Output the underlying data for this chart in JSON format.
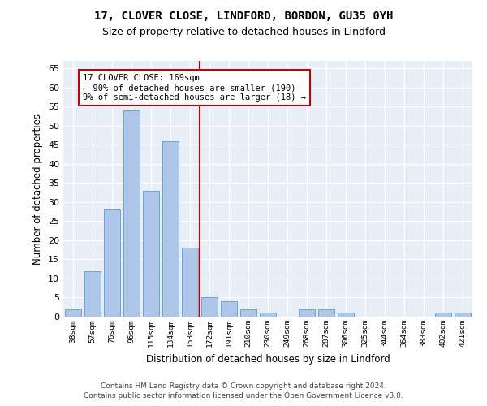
{
  "title": "17, CLOVER CLOSE, LINDFORD, BORDON, GU35 0YH",
  "subtitle": "Size of property relative to detached houses in Lindford",
  "xlabel": "Distribution of detached houses by size in Lindford",
  "ylabel": "Number of detached properties",
  "categories": [
    "38sqm",
    "57sqm",
    "76sqm",
    "96sqm",
    "115sqm",
    "134sqm",
    "153sqm",
    "172sqm",
    "191sqm",
    "210sqm",
    "230sqm",
    "249sqm",
    "268sqm",
    "287sqm",
    "306sqm",
    "325sqm",
    "344sqm",
    "364sqm",
    "383sqm",
    "402sqm",
    "421sqm"
  ],
  "values": [
    2,
    12,
    28,
    54,
    33,
    46,
    18,
    5,
    4,
    2,
    1,
    0,
    2,
    2,
    1,
    0,
    0,
    0,
    0,
    1,
    1
  ],
  "bar_color": "#aec6e8",
  "bar_edge_color": "#5b9bd5",
  "background_color": "#e8eef8",
  "grid_color": "#ffffff",
  "vline_index": 7,
  "vline_color": "#cc0000",
  "annotation_line1": "17 CLOVER CLOSE: 169sqm",
  "annotation_line2": "← 90% of detached houses are smaller (190)",
  "annotation_line3": "9% of semi-detached houses are larger (18) →",
  "annotation_box_color": "#cc0000",
  "ylim": [
    0,
    67
  ],
  "yticks": [
    0,
    5,
    10,
    15,
    20,
    25,
    30,
    35,
    40,
    45,
    50,
    55,
    60,
    65
  ],
  "title_fontsize": 10,
  "subtitle_fontsize": 9,
  "footer1": "Contains HM Land Registry data © Crown copyright and database right 2024.",
  "footer2": "Contains public sector information licensed under the Open Government Licence v3.0.",
  "footer_fontsize": 6.5
}
